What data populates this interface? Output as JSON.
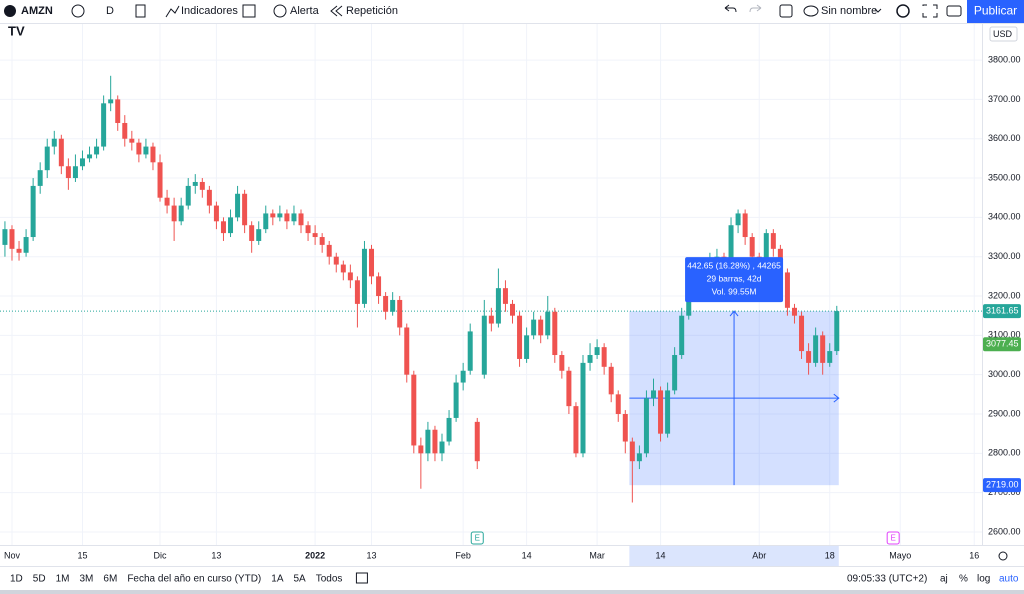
{
  "toolbar": {
    "symbol": "AMZN",
    "interval": "D",
    "indicators": "Indicadores",
    "alert": "Alerta",
    "replay": "Repetición",
    "layout_name": "Sin nombre",
    "publish": "Publicar"
  },
  "bottom_bar": {
    "ranges": [
      "1D",
      "5D",
      "1M",
      "3M",
      "6M",
      "Fecha del año en curso (YTD)",
      "1A",
      "5A",
      "Todos"
    ],
    "clock": "09:05:33 (UTC+2)",
    "options": [
      "aj",
      "%",
      "log",
      "auto"
    ]
  },
  "chart_data": {
    "type": "candlestick",
    "currency": "USD",
    "candles": [
      [
        3330,
        3390,
        3300,
        3370
      ],
      [
        3370,
        3380,
        3290,
        3320
      ],
      [
        3320,
        3340,
        3290,
        3310
      ],
      [
        3310,
        3370,
        3300,
        3350
      ],
      [
        3350,
        3500,
        3340,
        3480
      ],
      [
        3480,
        3540,
        3460,
        3520
      ],
      [
        3520,
        3600,
        3500,
        3580
      ],
      [
        3580,
        3620,
        3560,
        3600
      ],
      [
        3600,
        3610,
        3510,
        3530
      ],
      [
        3530,
        3550,
        3470,
        3500
      ],
      [
        3500,
        3560,
        3490,
        3530
      ],
      [
        3530,
        3570,
        3520,
        3550
      ],
      [
        3550,
        3580,
        3540,
        3560
      ],
      [
        3560,
        3600,
        3550,
        3580
      ],
      [
        3580,
        3710,
        3570,
        3690
      ],
      [
        3690,
        3760,
        3670,
        3700
      ],
      [
        3700,
        3710,
        3620,
        3640
      ],
      [
        3640,
        3660,
        3580,
        3600
      ],
      [
        3600,
        3620,
        3570,
        3590
      ],
      [
        3590,
        3600,
        3540,
        3560
      ],
      [
        3560,
        3600,
        3550,
        3580
      ],
      [
        3580,
        3590,
        3520,
        3540
      ],
      [
        3540,
        3560,
        3440,
        3450
      ],
      [
        3450,
        3470,
        3410,
        3430
      ],
      [
        3430,
        3450,
        3340,
        3390
      ],
      [
        3390,
        3450,
        3380,
        3430
      ],
      [
        3430,
        3500,
        3420,
        3480
      ],
      [
        3480,
        3510,
        3460,
        3490
      ],
      [
        3490,
        3500,
        3450,
        3470
      ],
      [
        3470,
        3480,
        3410,
        3430
      ],
      [
        3430,
        3440,
        3370,
        3390
      ],
      [
        3390,
        3400,
        3340,
        3360
      ],
      [
        3360,
        3420,
        3350,
        3400
      ],
      [
        3400,
        3480,
        3390,
        3460
      ],
      [
        3460,
        3470,
        3360,
        3380
      ],
      [
        3380,
        3390,
        3310,
        3340
      ],
      [
        3340,
        3390,
        3330,
        3370
      ],
      [
        3370,
        3430,
        3360,
        3410
      ],
      [
        3410,
        3420,
        3380,
        3400
      ],
      [
        3400,
        3430,
        3390,
        3410
      ],
      [
        3410,
        3420,
        3370,
        3390
      ],
      [
        3390,
        3430,
        3380,
        3410
      ],
      [
        3410,
        3420,
        3360,
        3380
      ],
      [
        3380,
        3390,
        3340,
        3360
      ],
      [
        3360,
        3380,
        3330,
        3350
      ],
      [
        3350,
        3360,
        3310,
        3330
      ],
      [
        3330,
        3340,
        3280,
        3300
      ],
      [
        3300,
        3310,
        3260,
        3280
      ],
      [
        3280,
        3290,
        3240,
        3260
      ],
      [
        3260,
        3280,
        3220,
        3240
      ],
      [
        3240,
        3250,
        3120,
        3180
      ],
      [
        3180,
        3340,
        3170,
        3320
      ],
      [
        3320,
        3330,
        3230,
        3250
      ],
      [
        3250,
        3260,
        3180,
        3200
      ],
      [
        3200,
        3210,
        3140,
        3160
      ],
      [
        3160,
        3210,
        3150,
        3190
      ],
      [
        3190,
        3200,
        3100,
        3120
      ],
      [
        3120,
        3130,
        2980,
        3000
      ],
      [
        3000,
        3010,
        2800,
        2820
      ],
      [
        2820,
        2840,
        2710,
        2800
      ],
      [
        2800,
        2880,
        2780,
        2860
      ],
      [
        2860,
        2870,
        2780,
        2800
      ],
      [
        2800,
        2850,
        2780,
        2830
      ],
      [
        2830,
        2910,
        2820,
        2890
      ],
      [
        2890,
        3000,
        2880,
        2980
      ],
      [
        2980,
        3030,
        2960,
        3010
      ],
      [
        3010,
        3130,
        3000,
        3110
      ],
      [
        2880,
        2890,
        2760,
        2780
      ],
      [
        3000,
        3190,
        2990,
        3150
      ],
      [
        3150,
        3170,
        3110,
        3130
      ],
      [
        3130,
        3270,
        3120,
        3220
      ],
      [
        3220,
        3240,
        3160,
        3180
      ],
      [
        3180,
        3190,
        3130,
        3150
      ],
      [
        3150,
        3160,
        3020,
        3040
      ],
      [
        3040,
        3120,
        3030,
        3100
      ],
      [
        3100,
        3160,
        3090,
        3140
      ],
      [
        3140,
        3150,
        3080,
        3100
      ],
      [
        3100,
        3200,
        3090,
        3160
      ],
      [
        3160,
        3170,
        3030,
        3050
      ],
      [
        3050,
        3060,
        2990,
        3010
      ],
      [
        3010,
        3020,
        2900,
        2920
      ],
      [
        2920,
        2930,
        2790,
        2800
      ],
      [
        2800,
        3050,
        2790,
        3030
      ],
      [
        3030,
        3080,
        3010,
        3050
      ],
      [
        3050,
        3090,
        3040,
        3070
      ],
      [
        3070,
        3080,
        3000,
        3020
      ],
      [
        3020,
        3030,
        2930,
        2950
      ],
      [
        2950,
        2960,
        2880,
        2900
      ],
      [
        2900,
        2910,
        2800,
        2830
      ],
      [
        2830,
        2840,
        2675,
        2780
      ],
      [
        2780,
        2820,
        2760,
        2800
      ],
      [
        2800,
        2960,
        2790,
        2940
      ],
      [
        2940,
        2990,
        2920,
        2960
      ],
      [
        2960,
        2970,
        2830,
        2850
      ],
      [
        2850,
        2980,
        2840,
        2960
      ],
      [
        2960,
        3070,
        2950,
        3050
      ],
      [
        3050,
        3170,
        3040,
        3150
      ],
      [
        3150,
        3250,
        3140,
        3230
      ],
      [
        3230,
        3290,
        3220,
        3270
      ],
      [
        3270,
        3280,
        3230,
        3250
      ],
      [
        3250,
        3310,
        3240,
        3290
      ],
      [
        3290,
        3320,
        3280,
        3300
      ],
      [
        3300,
        3310,
        3250,
        3270
      ],
      [
        3270,
        3400,
        3260,
        3380
      ],
      [
        3380,
        3420,
        3360,
        3410
      ],
      [
        3410,
        3420,
        3330,
        3350
      ],
      [
        3350,
        3360,
        3280,
        3300
      ],
      [
        3300,
        3310,
        3270,
        3290
      ],
      [
        3290,
        3370,
        3280,
        3360
      ],
      [
        3360,
        3370,
        3300,
        3320
      ],
      [
        3320,
        3330,
        3240,
        3260
      ],
      [
        3260,
        3270,
        3150,
        3170
      ],
      [
        3170,
        3180,
        3130,
        3150
      ],
      [
        3150,
        3160,
        3040,
        3060
      ],
      [
        3060,
        3080,
        3000,
        3030
      ],
      [
        3030,
        3120,
        3020,
        3100
      ],
      [
        3100,
        3110,
        3000,
        3030
      ],
      [
        3030,
        3080,
        3020,
        3060
      ],
      [
        3060,
        3175,
        3050,
        3161.65
      ]
    ],
    "up_color": "#26a69a",
    "down_color": "#ef5350",
    "grid": true,
    "xlim": [
      -0.7,
      138.6
    ],
    "xticks": [
      {
        "value": 1,
        "label": "Nov"
      },
      {
        "value": 11,
        "label": "15"
      },
      {
        "value": 22,
        "label": "Dic"
      },
      {
        "value": 30,
        "label": "13"
      },
      {
        "value": 44,
        "label": "2022"
      },
      {
        "value": 52,
        "label": "13"
      },
      {
        "value": 65,
        "label": "Feb"
      },
      {
        "value": 74,
        "label": "14"
      },
      {
        "value": 84,
        "label": "Mar"
      },
      {
        "value": 93,
        "label": "14"
      },
      {
        "value": 107,
        "label": "Abr"
      },
      {
        "value": 117,
        "label": "18"
      },
      {
        "value": 127,
        "label": "Mayo"
      },
      {
        "value": 137.5,
        "label": "16"
      }
    ],
    "ylim": [
      2566.9,
      3891.7
    ],
    "yticks": [
      {
        "value": 2600,
        "label": "2600.00"
      },
      {
        "value": 2700,
        "label": "2700.00"
      },
      {
        "value": 2800,
        "label": "2800.00"
      },
      {
        "value": 2900,
        "label": "2900.00"
      },
      {
        "value": 3000,
        "label": "3000.00"
      },
      {
        "value": 3100,
        "label": "3100.00"
      },
      {
        "value": 3200,
        "label": "3200.00"
      },
      {
        "value": 3300,
        "label": "3300.00"
      },
      {
        "value": 3400,
        "label": "3400.00"
      },
      {
        "value": 3500,
        "label": "3500.00"
      },
      {
        "value": 3600,
        "label": "3600.00"
      },
      {
        "value": 3700,
        "label": "3700.00"
      },
      {
        "value": 3800,
        "label": "3800.00"
      }
    ],
    "last_price": 3161.65,
    "ma_price": 3077.45,
    "measure": {
      "from": {
        "value": 2719,
        "label": "2719.00"
      },
      "to": 3161.65,
      "lines": [
        "442.65 (16.28%) , 44265",
        "29 barras, 42d",
        "Vol. 99.55M"
      ]
    },
    "earnings_marker": "E"
  }
}
